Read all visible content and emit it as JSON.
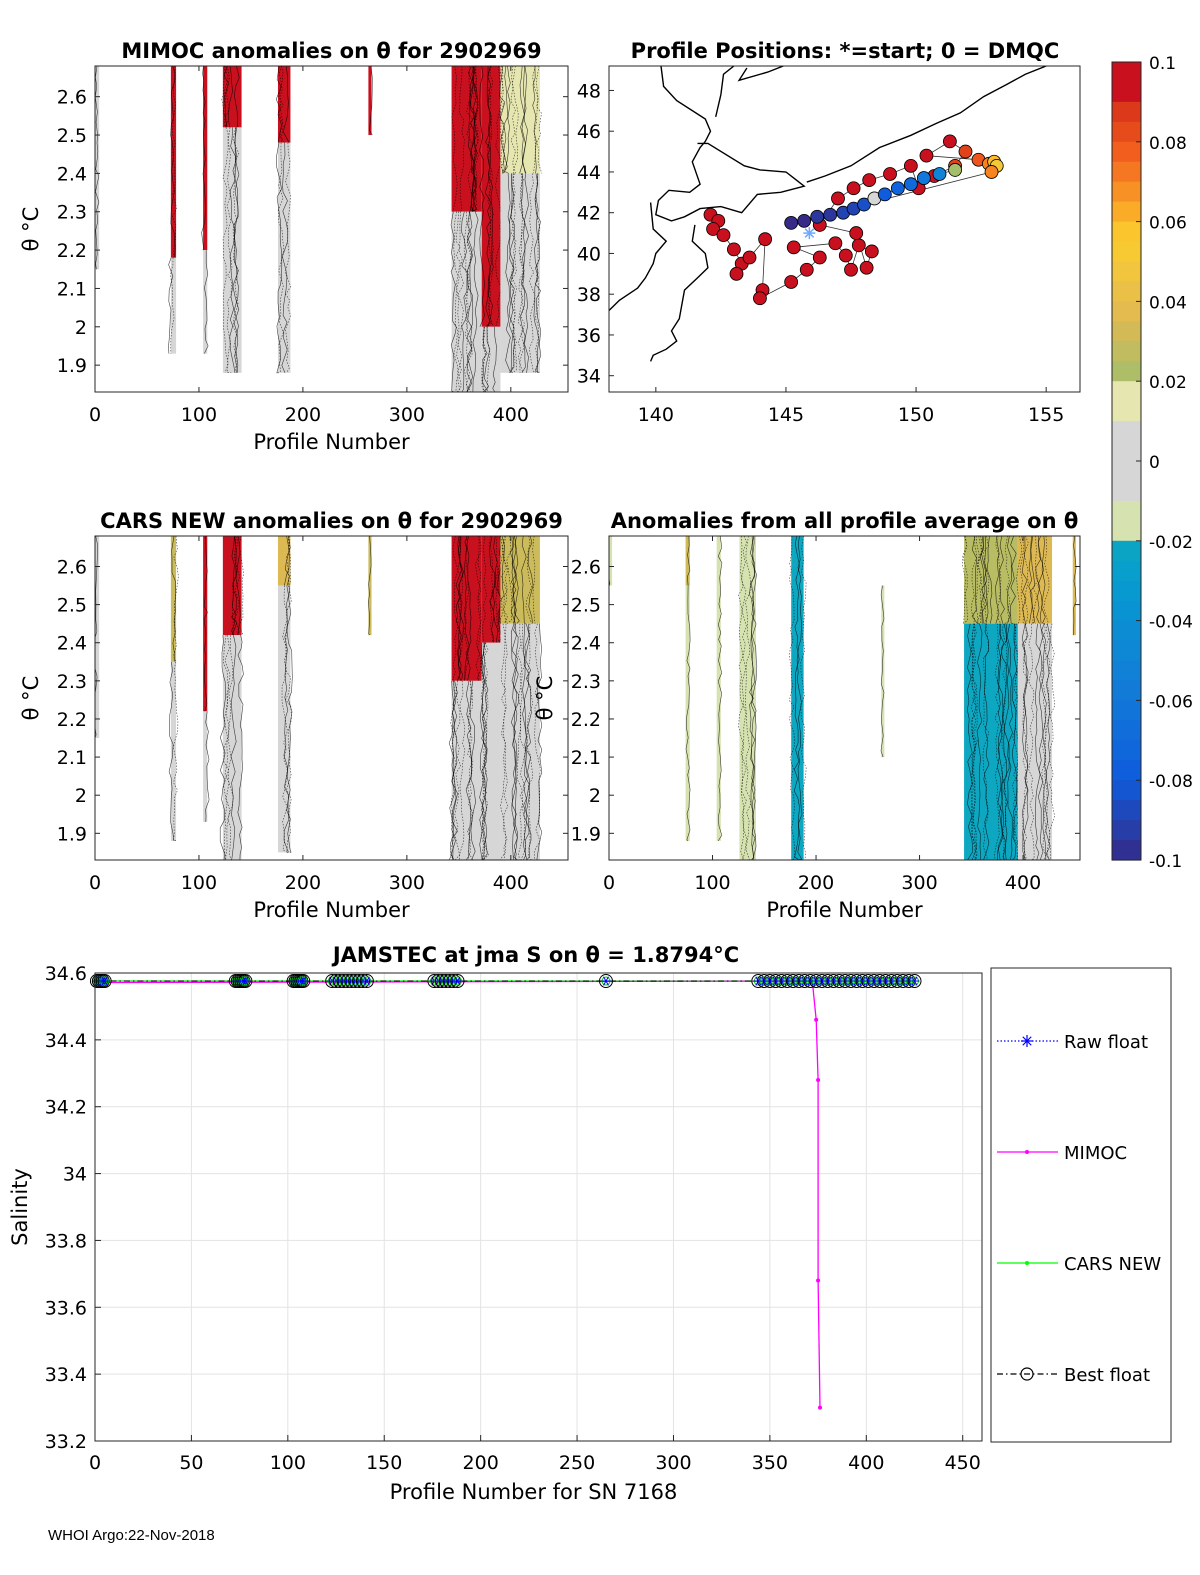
{
  "chart_data": [
    {
      "id": "mimoc",
      "type": "heatmap",
      "title": "MIMOC anomalies on θ  for 2902969",
      "xlabel": "Profile Number",
      "ylabel": "θ °C",
      "xlim": [
        0,
        455
      ],
      "ylim": [
        1.83,
        2.68
      ],
      "xticks": [
        0,
        100,
        200,
        300,
        400
      ],
      "yticks": [
        1.9,
        2,
        2.1,
        2.2,
        2.3,
        2.4,
        2.5,
        2.6
      ],
      "ytick_labels": [
        "1.9",
        "2",
        "2.1",
        "2.2",
        "2.3",
        "2.4",
        "2.5",
        "2.6"
      ],
      "bands": [
        {
          "x0": 0,
          "x1": 4,
          "lo": 2.15,
          "hi": 2.68,
          "c": 0.005
        },
        {
          "x0": 73,
          "x1": 78,
          "lo": 2.18,
          "hi": 2.68,
          "c": 0.1
        },
        {
          "x0": 73,
          "x1": 78,
          "lo": 1.93,
          "hi": 2.18,
          "c": 0.004
        },
        {
          "x0": 104,
          "x1": 108,
          "lo": 2.2,
          "hi": 2.68,
          "c": 0.1
        },
        {
          "x0": 104,
          "x1": 108,
          "lo": 1.93,
          "hi": 2.2,
          "c": 0.004
        },
        {
          "x0": 123,
          "x1": 141,
          "lo": 2.52,
          "hi": 2.68,
          "c": 0.1
        },
        {
          "x0": 123,
          "x1": 141,
          "lo": 1.88,
          "hi": 2.52,
          "c": 0.006
        },
        {
          "x0": 176,
          "x1": 188,
          "lo": 2.48,
          "hi": 2.68,
          "c": 0.1
        },
        {
          "x0": 176,
          "x1": 188,
          "lo": 1.88,
          "hi": 2.48,
          "c": 0.005
        },
        {
          "x0": 263,
          "x1": 266,
          "lo": 2.5,
          "hi": 2.68,
          "c": 0.1
        },
        {
          "x0": 343,
          "x1": 372,
          "lo": 2.3,
          "hi": 2.68,
          "c": 0.1
        },
        {
          "x0": 343,
          "x1": 372,
          "lo": 1.83,
          "hi": 2.3,
          "c": 0.006
        },
        {
          "x0": 372,
          "x1": 390,
          "lo": 2.0,
          "hi": 2.68,
          "c": 0.1
        },
        {
          "x0": 372,
          "x1": 390,
          "lo": 1.83,
          "hi": 2.0,
          "c": 0.006
        },
        {
          "x0": 390,
          "x1": 428,
          "lo": 2.4,
          "hi": 2.68,
          "c": 0.015
        },
        {
          "x0": 390,
          "x1": 428,
          "lo": 1.88,
          "hi": 2.4,
          "c": 0.004
        }
      ]
    },
    {
      "id": "positions",
      "type": "scatter",
      "title": "Profile Positions: *=start; 0 = DMQC",
      "xlim": [
        138.2,
        156.3
      ],
      "ylim": [
        33.2,
        49.2
      ],
      "xticks": [
        140,
        145,
        150,
        155
      ],
      "yticks": [
        34,
        36,
        38,
        40,
        42,
        44,
        46,
        48
      ],
      "start": [
        145.9,
        41.0
      ],
      "points": [
        {
          "lon": 142.1,
          "lat": 41.9,
          "c": 0.1
        },
        {
          "lon": 142.4,
          "lat": 41.6,
          "c": 0.1
        },
        {
          "lon": 142.2,
          "lat": 41.2,
          "c": 0.1
        },
        {
          "lon": 142.6,
          "lat": 40.9,
          "c": 0.1
        },
        {
          "lon": 143.0,
          "lat": 40.2,
          "c": 0.1
        },
        {
          "lon": 143.3,
          "lat": 39.5,
          "c": 0.1
        },
        {
          "lon": 143.1,
          "lat": 39.0,
          "c": 0.1
        },
        {
          "lon": 143.6,
          "lat": 39.8,
          "c": 0.1
        },
        {
          "lon": 144.2,
          "lat": 40.7,
          "c": 0.1
        },
        {
          "lon": 144.1,
          "lat": 38.2,
          "c": 0.1
        },
        {
          "lon": 144.0,
          "lat": 37.8,
          "c": 0.1
        },
        {
          "lon": 145.2,
          "lat": 38.6,
          "c": 0.1
        },
        {
          "lon": 145.8,
          "lat": 39.2,
          "c": 0.1
        },
        {
          "lon": 146.3,
          "lat": 39.8,
          "c": 0.1
        },
        {
          "lon": 145.3,
          "lat": 40.3,
          "c": 0.1
        },
        {
          "lon": 146.9,
          "lat": 40.5,
          "c": 0.1
        },
        {
          "lon": 147.3,
          "lat": 39.9,
          "c": 0.1
        },
        {
          "lon": 147.5,
          "lat": 39.2,
          "c": 0.1
        },
        {
          "lon": 147.8,
          "lat": 40.4,
          "c": 0.1
        },
        {
          "lon": 148.3,
          "lat": 40.1,
          "c": 0.1
        },
        {
          "lon": 148.1,
          "lat": 39.3,
          "c": 0.1
        },
        {
          "lon": 147.7,
          "lat": 41.0,
          "c": 0.1
        },
        {
          "lon": 146.3,
          "lat": 41.4,
          "c": 0.095
        },
        {
          "lon": 147.0,
          "lat": 42.7,
          "c": 0.095
        },
        {
          "lon": 147.6,
          "lat": 43.2,
          "c": 0.095
        },
        {
          "lon": 148.2,
          "lat": 43.6,
          "c": 0.09
        },
        {
          "lon": 149.0,
          "lat": 43.9,
          "c": 0.09
        },
        {
          "lon": 149.8,
          "lat": 44.3,
          "c": 0.09
        },
        {
          "lon": 150.1,
          "lat": 43.2,
          "c": 0.09
        },
        {
          "lon": 150.7,
          "lat": 43.8,
          "c": 0.09
        },
        {
          "lon": 151.5,
          "lat": 44.3,
          "c": 0.085
        },
        {
          "lon": 151.9,
          "lat": 45.0,
          "c": 0.085
        },
        {
          "lon": 151.3,
          "lat": 45.5,
          "c": 0.09
        },
        {
          "lon": 150.4,
          "lat": 44.8,
          "c": 0.09
        },
        {
          "lon": 152.4,
          "lat": 44.6,
          "c": 0.08
        },
        {
          "lon": 152.8,
          "lat": 44.4,
          "c": 0.07
        },
        {
          "lon": 153.0,
          "lat": 44.5,
          "c": 0.06
        },
        {
          "lon": 153.1,
          "lat": 44.3,
          "c": 0.05
        },
        {
          "lon": 152.9,
          "lat": 44.0,
          "c": 0.07
        },
        {
          "lon": 145.2,
          "lat": 41.5,
          "c": -0.1
        },
        {
          "lon": 145.7,
          "lat": 41.6,
          "c": -0.1
        },
        {
          "lon": 146.2,
          "lat": 41.8,
          "c": -0.095
        },
        {
          "lon": 146.7,
          "lat": 41.9,
          "c": -0.095
        },
        {
          "lon": 147.2,
          "lat": 42.0,
          "c": -0.09
        },
        {
          "lon": 147.6,
          "lat": 42.2,
          "c": -0.09
        },
        {
          "lon": 148.0,
          "lat": 42.4,
          "c": -0.085
        },
        {
          "lon": 148.4,
          "lat": 42.7,
          "c": 0.004
        },
        {
          "lon": 148.8,
          "lat": 42.9,
          "c": -0.08
        },
        {
          "lon": 149.3,
          "lat": 43.2,
          "c": -0.075
        },
        {
          "lon": 149.8,
          "lat": 43.4,
          "c": -0.07
        },
        {
          "lon": 150.3,
          "lat": 43.7,
          "c": -0.06
        },
        {
          "lon": 150.9,
          "lat": 43.9,
          "c": -0.05
        },
        {
          "lon": 151.5,
          "lat": 44.1,
          "c": 0.02
        }
      ]
    },
    {
      "id": "cars",
      "type": "heatmap",
      "title": "CARS NEW anomalies on θ for 2902969",
      "xlabel": "Profile Number",
      "ylabel": "θ °C",
      "xlim": [
        0,
        455
      ],
      "ylim": [
        1.83,
        2.68
      ],
      "xticks": [
        0,
        100,
        200,
        300,
        400
      ],
      "yticks": [
        1.9,
        2,
        2.1,
        2.2,
        2.3,
        2.4,
        2.5,
        2.6
      ],
      "ytick_labels": [
        "1.9",
        "2",
        "2.1",
        "2.2",
        "2.3",
        "2.4",
        "2.5",
        "2.6"
      ],
      "bands": [
        {
          "x0": 0,
          "x1": 4,
          "lo": 2.15,
          "hi": 2.68,
          "c": 0.005
        },
        {
          "x0": 73,
          "x1": 78,
          "lo": 2.35,
          "hi": 2.68,
          "c": 0.03
        },
        {
          "x0": 73,
          "x1": 78,
          "lo": 1.88,
          "hi": 2.35,
          "c": 0.004
        },
        {
          "x0": 104,
          "x1": 108,
          "lo": 2.22,
          "hi": 2.68,
          "c": 0.1
        },
        {
          "x0": 104,
          "x1": 108,
          "lo": 1.93,
          "hi": 2.22,
          "c": 0.004
        },
        {
          "x0": 123,
          "x1": 141,
          "lo": 2.42,
          "hi": 2.68,
          "c": 0.1
        },
        {
          "x0": 123,
          "x1": 141,
          "lo": 1.83,
          "hi": 2.42,
          "c": 0.006
        },
        {
          "x0": 176,
          "x1": 188,
          "lo": 2.55,
          "hi": 2.68,
          "c": 0.035
        },
        {
          "x0": 176,
          "x1": 188,
          "lo": 1.85,
          "hi": 2.55,
          "c": 0.005
        },
        {
          "x0": 263,
          "x1": 266,
          "lo": 2.42,
          "hi": 2.68,
          "c": 0.03
        },
        {
          "x0": 343,
          "x1": 372,
          "lo": 2.3,
          "hi": 2.68,
          "c": 0.1
        },
        {
          "x0": 343,
          "x1": 372,
          "lo": 1.83,
          "hi": 2.3,
          "c": 0.006
        },
        {
          "x0": 372,
          "x1": 390,
          "lo": 2.4,
          "hi": 2.68,
          "c": 0.1
        },
        {
          "x0": 372,
          "x1": 390,
          "lo": 1.83,
          "hi": 2.4,
          "c": 0.006
        },
        {
          "x0": 390,
          "x1": 428,
          "lo": 2.45,
          "hi": 2.68,
          "c": 0.03
        },
        {
          "x0": 390,
          "x1": 428,
          "lo": 1.83,
          "hi": 2.45,
          "c": 0.004
        }
      ]
    },
    {
      "id": "allavg",
      "type": "heatmap",
      "title": "Anomalies from all profile average on θ",
      "xlabel": "Profile Number",
      "ylabel": "θ °C",
      "xlim": [
        0,
        455
      ],
      "ylim": [
        1.83,
        2.68
      ],
      "xticks": [
        0,
        100,
        200,
        300,
        400
      ],
      "yticks": [
        1.9,
        2,
        2.1,
        2.2,
        2.3,
        2.4,
        2.5,
        2.6
      ],
      "ytick_labels": [
        "1.9",
        "2",
        "2.1",
        "2.2",
        "2.3",
        "2.4",
        "2.5",
        "2.6"
      ],
      "bands": [
        {
          "x0": 0,
          "x1": 3,
          "lo": 2.55,
          "hi": 2.68,
          "c": -0.015
        },
        {
          "x0": 74,
          "x1": 78,
          "lo": 2.55,
          "hi": 2.68,
          "c": 0.03
        },
        {
          "x0": 74,
          "x1": 78,
          "lo": 1.88,
          "hi": 2.55,
          "c": -0.012
        },
        {
          "x0": 104,
          "x1": 108,
          "lo": 1.88,
          "hi": 2.68,
          "c": -0.012
        },
        {
          "x0": 126,
          "x1": 142,
          "lo": 1.83,
          "hi": 2.68,
          "c": -0.015
        },
        {
          "x0": 176,
          "x1": 188,
          "lo": 1.83,
          "hi": 2.68,
          "c": -0.02
        },
        {
          "x0": 263,
          "x1": 266,
          "lo": 2.1,
          "hi": 2.55,
          "c": -0.015
        },
        {
          "x0": 343,
          "x1": 395,
          "lo": 2.45,
          "hi": 2.68,
          "c": 0.025
        },
        {
          "x0": 343,
          "x1": 395,
          "lo": 1.83,
          "hi": 2.45,
          "c": -0.02
        },
        {
          "x0": 395,
          "x1": 428,
          "lo": 2.45,
          "hi": 2.68,
          "c": 0.035
        },
        {
          "x0": 395,
          "x1": 428,
          "lo": 1.83,
          "hi": 2.45,
          "c": 0.004
        },
        {
          "x0": 448,
          "x1": 451,
          "lo": 2.42,
          "hi": 2.68,
          "c": 0.035
        }
      ]
    },
    {
      "id": "salinity",
      "type": "line",
      "title": "JAMSTEC at jma S on θ = 1.8794°C",
      "xlabel": "Profile Number for SN 7168",
      "ylabel": "Salinity",
      "xlim": [
        0,
        460
      ],
      "ylim": [
        33.2,
        34.6
      ],
      "xticks": [
        0,
        50,
        100,
        150,
        200,
        250,
        300,
        350,
        400,
        450
      ],
      "yticks": [
        33.2,
        33.4,
        33.6,
        33.8,
        34,
        34.2,
        34.4,
        34.6
      ],
      "ytick_labels": [
        "33.2",
        "33.4",
        "33.6",
        "33.8",
        "34",
        "34.2",
        "34.4",
        "34.6"
      ],
      "grid": true,
      "series": [
        {
          "name": "Raw float",
          "color": "#0000ff",
          "style": "dotted",
          "marker": "star"
        },
        {
          "name": "MIMOC",
          "color": "#ff00ff",
          "style": "solid",
          "marker": "dot"
        },
        {
          "name": "CARS NEW",
          "color": "#00ff00",
          "style": "solid",
          "marker": "dot"
        },
        {
          "name": "Best float",
          "color": "#000000",
          "style": "dashdot",
          "marker": "circle"
        }
      ],
      "float_profiles": [
        1,
        2,
        3,
        4,
        5,
        73,
        74,
        75,
        76,
        77,
        78,
        103,
        104,
        105,
        106,
        107,
        108,
        123,
        125,
        127,
        129,
        131,
        133,
        135,
        137,
        139,
        141,
        176,
        178,
        180,
        182,
        184,
        186,
        188,
        265,
        344,
        347,
        350,
        353,
        356,
        359,
        362,
        365,
        368,
        371,
        374,
        377,
        380,
        383,
        386,
        389,
        392,
        395,
        398,
        401,
        404,
        407,
        410,
        413,
        416,
        419,
        422,
        425
      ],
      "float_value": 34.576,
      "mimoc_drop": [
        {
          "x": 372,
          "y": 34.576
        },
        {
          "x": 374,
          "y": 34.46
        },
        {
          "x": 375,
          "y": 34.28
        },
        {
          "x": 375,
          "y": 33.68
        },
        {
          "x": 376,
          "y": 33.3
        }
      ]
    }
  ],
  "colorbar": {
    "min": -0.1,
    "max": 0.1,
    "tick_labels": [
      "0.1",
      "0.08",
      "0.06",
      "0.04",
      "0.02",
      "0",
      "-0.02",
      "-0.04",
      "-0.06",
      "-0.08",
      "-0.1"
    ],
    "tick_values": [
      0.1,
      0.08,
      0.06,
      0.04,
      0.02,
      0,
      -0.02,
      -0.04,
      -0.06,
      -0.08,
      -0.1
    ]
  },
  "footer": "WHOI Argo:22-Nov-2018"
}
